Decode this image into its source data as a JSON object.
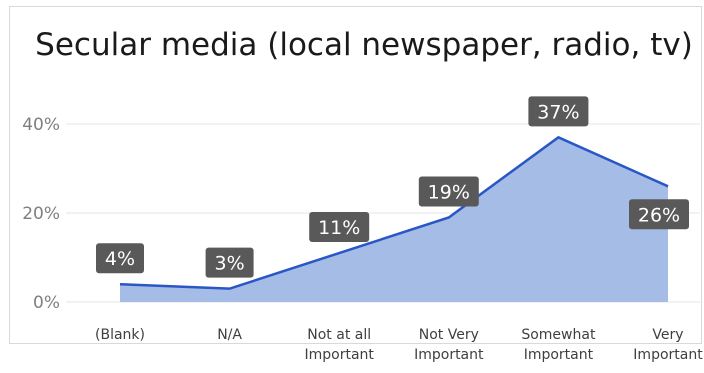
{
  "chart_data": {
    "type": "area",
    "title": "Secular media (local newspaper, radio, tv)",
    "categories": [
      [
        "(Blank)"
      ],
      [
        "N/A"
      ],
      [
        "Not at all",
        "Important"
      ],
      [
        "Not Very",
        "Important"
      ],
      [
        "Somewhat",
        "Important"
      ],
      [
        "Very",
        "Important"
      ]
    ],
    "values": [
      4,
      3,
      11,
      19,
      37,
      26
    ],
    "value_labels": [
      "4%",
      "3%",
      "11%",
      "19%",
      "37%",
      "26%"
    ],
    "y_ticks": [
      {
        "value": 0,
        "label": "0%"
      },
      {
        "value": 20,
        "label": "20%"
      },
      {
        "value": 40,
        "label": "40%"
      }
    ],
    "ylim": [
      0,
      50
    ],
    "grid": true,
    "colors": {
      "area": "#a4bce6",
      "line": "#2a56c6",
      "label_bg": "#595959",
      "grid": "#e6e6e6"
    }
  }
}
